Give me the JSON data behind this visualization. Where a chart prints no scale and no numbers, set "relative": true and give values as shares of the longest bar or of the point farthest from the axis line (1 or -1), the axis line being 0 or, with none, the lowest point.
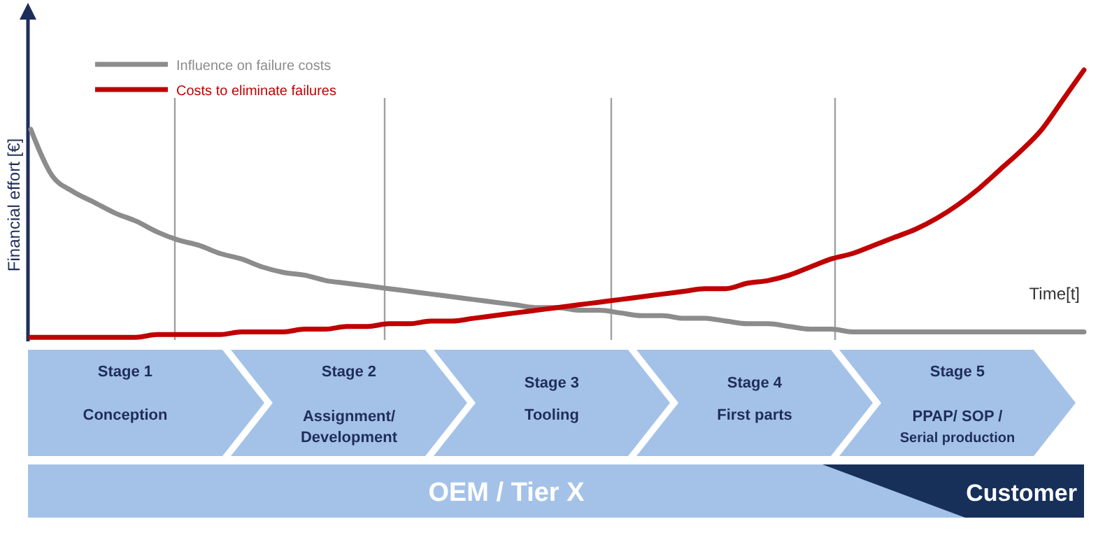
{
  "chart_data": {
    "type": "line",
    "relative": true,
    "ylabel": "Financial effort [€]",
    "xlabel": "Time[t]",
    "legend": "top left",
    "marker": "none",
    "line_style": "solid",
    "categories": [
      null,
      null,
      null,
      null,
      null,
      null,
      null,
      null,
      null,
      null,
      null,
      null,
      null,
      null,
      null,
      null,
      null,
      null,
      null,
      null,
      null,
      null,
      null,
      null,
      null,
      null,
      null,
      null,
      null,
      null,
      null,
      null,
      null,
      null,
      null,
      null,
      null,
      null,
      null,
      null,
      null,
      null,
      null,
      null,
      null,
      null,
      null,
      null,
      null,
      null,
      null
    ],
    "series": [
      {
        "name": "Influence on failure costs",
        "color": "#8c8c8c",
        "values": [
          0.78,
          0.61,
          0.55,
          0.51,
          0.47,
          0.44,
          0.4,
          0.37,
          0.35,
          0.32,
          0.3,
          0.27,
          0.25,
          0.24,
          0.22,
          0.21,
          0.2,
          0.19,
          0.18,
          0.17,
          0.16,
          0.15,
          0.14,
          0.13,
          0.12,
          0.12,
          0.11,
          0.11,
          0.1,
          0.09,
          0.09,
          0.08,
          0.08,
          0.07,
          0.06,
          0.06,
          0.05,
          0.04,
          0.04,
          0.03,
          0.03,
          0.03,
          0.03,
          0.03,
          0.03,
          0.03,
          0.03,
          0.03,
          0.03,
          0.03,
          0.03
        ]
      },
      {
        "name": "Costs to eliminate failures",
        "color": "#c00000",
        "values": [
          0.01,
          0.01,
          0.01,
          0.01,
          0.01,
          0.01,
          0.02,
          0.02,
          0.02,
          0.02,
          0.03,
          0.03,
          0.03,
          0.04,
          0.04,
          0.05,
          0.05,
          0.06,
          0.06,
          0.07,
          0.07,
          0.08,
          0.09,
          0.1,
          0.11,
          0.12,
          0.13,
          0.14,
          0.15,
          0.16,
          0.17,
          0.18,
          0.19,
          0.19,
          0.21,
          0.22,
          0.24,
          0.27,
          0.3,
          0.32,
          0.35,
          0.38,
          0.41,
          0.45,
          0.5,
          0.56,
          0.63,
          0.7,
          0.78,
          0.89,
          1
        ]
      }
    ],
    "annotations": [
      "Stage 1",
      "Conception",
      "Stage 2",
      "Assignment/\nDevelopment",
      "Stage 3",
      "Tooling",
      "Stage 4",
      "First parts",
      "Stage 5",
      "PPAP/ SOP /\nSerial production",
      "OEM / Tier X",
      "Customer"
    ]
  }
}
